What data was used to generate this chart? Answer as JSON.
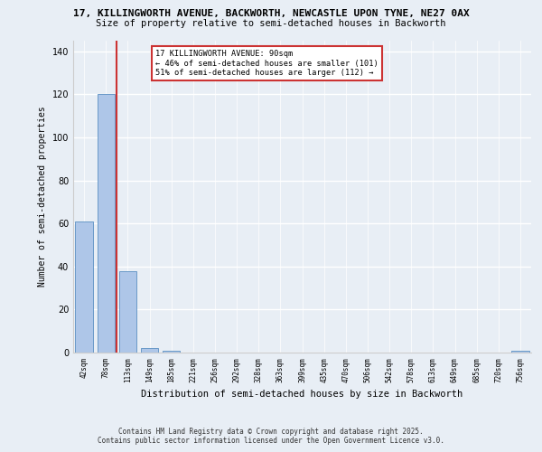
{
  "title_line1": "17, KILLINGWORTH AVENUE, BACKWORTH, NEWCASTLE UPON TYNE, NE27 0AX",
  "title_line2": "Size of property relative to semi-detached houses in Backworth",
  "xlabel": "Distribution of semi-detached houses by size in Backworth",
  "ylabel": "Number of semi-detached properties",
  "categories": [
    "42sqm",
    "78sqm",
    "113sqm",
    "149sqm",
    "185sqm",
    "221sqm",
    "256sqm",
    "292sqm",
    "328sqm",
    "363sqm",
    "399sqm",
    "435sqm",
    "470sqm",
    "506sqm",
    "542sqm",
    "578sqm",
    "613sqm",
    "649sqm",
    "685sqm",
    "720sqm",
    "756sqm"
  ],
  "values": [
    61,
    120,
    38,
    2,
    1,
    0,
    0,
    0,
    0,
    0,
    0,
    0,
    0,
    0,
    0,
    0,
    0,
    0,
    0,
    0,
    1
  ],
  "bar_color": "#aec6e8",
  "bar_edge_color": "#5a8fc2",
  "highlight_bar_index": 1,
  "highlight_color": "#cc3333",
  "annotation_text": "17 KILLINGWORTH AVENUE: 90sqm\n← 46% of semi-detached houses are smaller (101)\n51% of semi-detached houses are larger (112) →",
  "annotation_box_color": "#ffffff",
  "annotation_box_edge_color": "#cc3333",
  "ylim": [
    0,
    145
  ],
  "yticks": [
    0,
    20,
    40,
    60,
    80,
    100,
    120,
    140
  ],
  "bg_color": "#e8eef5",
  "plot_bg_color": "#e8eef5",
  "grid_color": "#ffffff",
  "footer_line1": "Contains HM Land Registry data © Crown copyright and database right 2025.",
  "footer_line2": "Contains public sector information licensed under the Open Government Licence v3.0."
}
